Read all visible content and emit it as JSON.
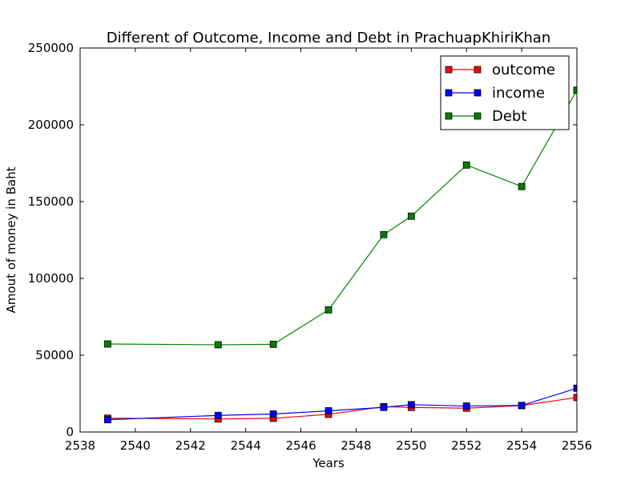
{
  "chart_data": {
    "type": "line",
    "title": "Different of Outcome, Income and Debt in PrachuapKhiriKhan",
    "xlabel": "Years",
    "ylabel": "Amout of money in Baht",
    "xlim": [
      2538,
      2556
    ],
    "ylim": [
      0,
      250000
    ],
    "xticks": [
      2538,
      2540,
      2542,
      2544,
      2546,
      2548,
      2550,
      2552,
      2554,
      2556
    ],
    "yticks": [
      0,
      50000,
      100000,
      150000,
      200000,
      250000
    ],
    "grid": false,
    "legend_position": "top-right",
    "series": [
      {
        "name": "outcome",
        "color": "#ff0000",
        "marker": "square",
        "x": [
          2539,
          2543,
          2545,
          2547,
          2549,
          2550,
          2552,
          2554,
          2556
        ],
        "y": [
          9000,
          8500,
          8900,
          11500,
          16500,
          16000,
          15500,
          17200,
          22500
        ]
      },
      {
        "name": "income",
        "color": "#0000ff",
        "marker": "square",
        "x": [
          2539,
          2543,
          2545,
          2547,
          2549,
          2550,
          2552,
          2554,
          2556
        ],
        "y": [
          8000,
          10800,
          11700,
          13800,
          16000,
          17800,
          16900,
          17300,
          28500
        ]
      },
      {
        "name": "Debt",
        "color": "#008000",
        "marker": "square",
        "x": [
          2539,
          2543,
          2545,
          2547,
          2549,
          2550,
          2552,
          2554,
          2556
        ],
        "y": [
          57300,
          56800,
          57100,
          79500,
          128500,
          140500,
          173800,
          159800,
          222500
        ]
      }
    ]
  }
}
